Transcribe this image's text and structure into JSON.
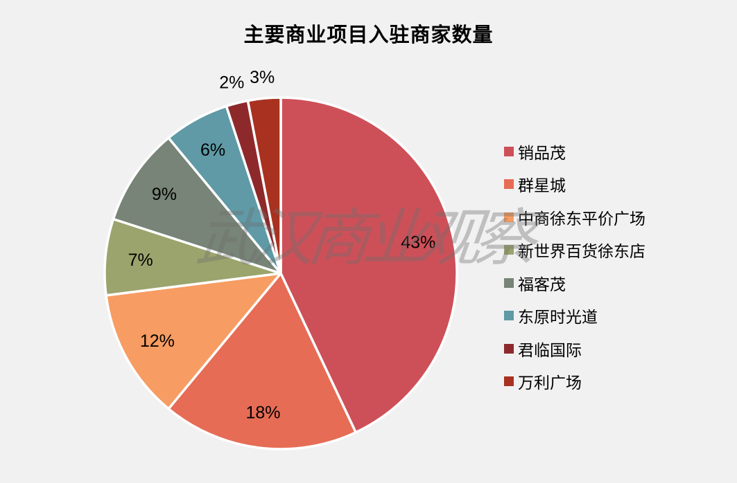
{
  "background_color": "#F1F1F2",
  "watermark": {
    "text": "武汉商业观察"
  },
  "chart_data": {
    "type": "pie",
    "title": "主要商业项目入驻商家数量",
    "categories": [
      "销品茂",
      "群星城",
      "中商徐东平价广场",
      "新世界百货徐东店",
      "福客茂",
      "东原时光道",
      "君临国际",
      "万利广场"
    ],
    "values": [
      43,
      18,
      12,
      7,
      9,
      6,
      2,
      3
    ],
    "labels": [
      "43%",
      "18%",
      "12%",
      "7%",
      "9%",
      "6%",
      "2%",
      "3%"
    ],
    "colors": [
      "#CD5058",
      "#E66C55",
      "#F79C62",
      "#9BA46D",
      "#778477",
      "#5F9AA6",
      "#8E292B",
      "#A93120"
    ],
    "label_format": "percent",
    "label_color": "#000000",
    "slice_border_color": "#FFFFFF",
    "legend_position": "right",
    "start_angle_deg": 0,
    "direction": "clockwise"
  }
}
